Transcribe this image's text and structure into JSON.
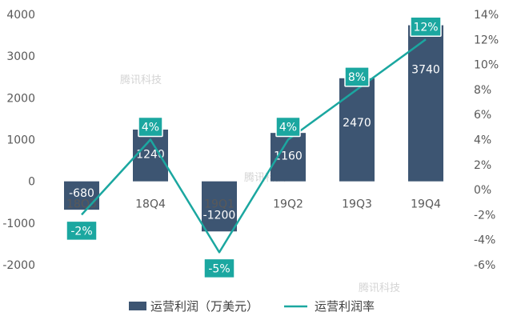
{
  "chart_data": {
    "type": "bar",
    "categories": [
      "18Q3",
      "18Q4",
      "19Q1",
      "19Q2",
      "19Q3",
      "19Q4"
    ],
    "series": [
      {
        "name": "运营利润（万美元）",
        "type": "bar",
        "axis": "left",
        "values": [
          -680,
          1240,
          -1200,
          1160,
          2470,
          3740
        ],
        "labels": [
          "-680",
          "1240",
          "-1200",
          "1160",
          "2470",
          "3740"
        ],
        "color": "#3d5572"
      },
      {
        "name": "运营利润率",
        "type": "line",
        "axis": "right",
        "values": [
          -2,
          4,
          -5,
          4,
          8,
          12
        ],
        "labels": [
          "-2%",
          "4%",
          "-5%",
          "4%",
          "8%",
          "12%"
        ],
        "color": "#1ba7a0"
      }
    ],
    "y_left": {
      "ylim": [
        -2000,
        4000
      ],
      "ticks": [
        "-2000",
        "-1000",
        "0",
        "1000",
        "2000",
        "3000",
        "4000"
      ]
    },
    "y_right": {
      "ylim": [
        -6,
        14
      ],
      "ticks": [
        "-6%",
        "-4%",
        "-2%",
        "0%",
        "2%",
        "4%",
        "6%",
        "8%",
        "10%",
        "12%",
        "14%"
      ]
    },
    "grid": false,
    "legend": "bottom"
  },
  "watermark": "腾讯科技"
}
